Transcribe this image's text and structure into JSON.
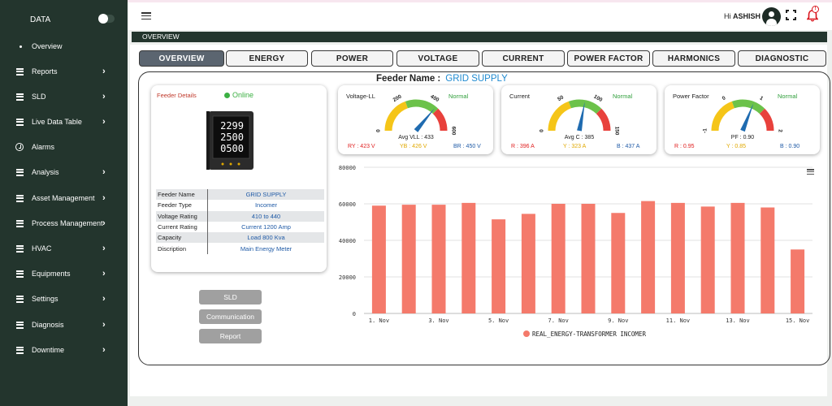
{
  "sidebar": {
    "brand": "DATA",
    "items": [
      {
        "label": "Overview",
        "icon": "dot-icon",
        "chevron": false
      },
      {
        "label": "Reports",
        "icon": "menu-icon",
        "chevron": true
      },
      {
        "label": "SLD",
        "icon": "menu-icon",
        "chevron": true
      },
      {
        "label": "Live Data Table",
        "icon": "menu-icon",
        "chevron": true
      },
      {
        "label": "Alarms",
        "icon": "clock-icon",
        "chevron": false
      },
      {
        "label": "Analysis",
        "icon": "menu-icon",
        "chevron": true
      },
      {
        "label": "Asset Management",
        "icon": "menu-icon",
        "chevron": true
      },
      {
        "label": "Process Management",
        "icon": "menu-icon",
        "chevron": true
      },
      {
        "label": "HVAC",
        "icon": "menu-icon",
        "chevron": true
      },
      {
        "label": "Equipments",
        "icon": "menu-icon",
        "chevron": true
      },
      {
        "label": "Settings",
        "icon": "menu-icon",
        "chevron": true
      },
      {
        "label": "Diagnosis",
        "icon": "menu-icon",
        "chevron": true
      },
      {
        "label": "Downtime",
        "icon": "menu-icon",
        "chevron": true
      }
    ],
    "chevron": "›"
  },
  "header": {
    "greeting": "Hi",
    "user": "ASHISH",
    "notification_badge": "!"
  },
  "overview_bar": "OVERVIEW",
  "tabs": [
    "OVERVIEW",
    "ENERGY",
    "POWER",
    "VOLTAGE",
    "CURRENT",
    "POWER FACTOR",
    "HARMONICS",
    "DIAGNOSTIC"
  ],
  "active_tab": "OVERVIEW",
  "feeder": {
    "label": "Feeder Name :",
    "name": "GRID SUPPLY"
  },
  "feeder_details": {
    "title": "Feeder Details",
    "status": "Online",
    "meter_lines": [
      "2299",
      "2500",
      "0500"
    ],
    "rows": [
      {
        "key": "Feeder Name",
        "value": "GRID SUPPLY"
      },
      {
        "key": "Feeder Type",
        "value": "Incomer"
      },
      {
        "key": "Voltage Rating",
        "value": "410 to 440"
      },
      {
        "key": "Current Rating",
        "value": "Current 1200 Amp"
      },
      {
        "key": "Capacity",
        "value": "Load 800 Kva"
      },
      {
        "key": "Discription",
        "value": "Main Energy Meter"
      }
    ]
  },
  "buttons": {
    "sld": "SLD",
    "communication": "Communication",
    "report": "Report"
  },
  "gauges": [
    {
      "title": "Voltage-LL",
      "status": "Normal",
      "min": "0",
      "mid1": "200",
      "mid2": "400",
      "max": "600",
      "value_fraction": 0.72,
      "avg": "Avg VLL : 433",
      "phases": [
        {
          "label": "RY : 423 V",
          "color": "#e02020"
        },
        {
          "label": "YB : 426 V",
          "color": "#e0a800"
        },
        {
          "label": "BR : 450 V",
          "color": "#1f5aa6"
        }
      ]
    },
    {
      "title": "Current",
      "status": "Normal",
      "min": "0",
      "mid1": "50",
      "mid2": "100",
      "max": "150",
      "value_fraction": 0.56,
      "avg": "Avg C : 385",
      "phases": [
        {
          "label": "R : 396 A",
          "color": "#e02020"
        },
        {
          "label": "Y : 323 A",
          "color": "#e0a800"
        },
        {
          "label": "B : 437 A",
          "color": "#1f5aa6"
        }
      ]
    },
    {
      "title": "Power Factor",
      "status": "Normal",
      "min": "-1",
      "mid1": "0",
      "mid2": "1",
      "max": "2",
      "value_fraction": 0.62,
      "avg": "PF : 0.90",
      "phases": [
        {
          "label": "R : 0.95",
          "color": "#e02020"
        },
        {
          "label": "Y : 0.85",
          "color": "#e0a800"
        },
        {
          "label": "B : 0.90",
          "color": "#1f5aa6"
        }
      ]
    }
  ],
  "gauge_colors": [
    "#f5c518",
    "#6cc24a",
    "#e8413c"
  ],
  "needle_color": "#1f6bb0",
  "chart_data": {
    "type": "bar",
    "categories": [
      "1. Nov",
      "2. Nov",
      "3. Nov",
      "4. Nov",
      "5. Nov",
      "6. Nov",
      "7. Nov",
      "8. Nov",
      "9. Nov",
      "10. Nov",
      "11. Nov",
      "12. Nov",
      "13. Nov",
      "14. Nov",
      "15. Nov"
    ],
    "x_tick_labels": [
      "1. Nov",
      "3. Nov",
      "5. Nov",
      "7. Nov",
      "9. Nov",
      "11. Nov",
      "13. Nov",
      "15. Nov"
    ],
    "series": [
      {
        "name": "REAL_ENERGY-TRANSFORMER INCOMER",
        "values": [
          59000,
          59500,
          59500,
          60500,
          51500,
          54500,
          60000,
          60000,
          55000,
          61500,
          60500,
          58500,
          60500,
          58000,
          35000
        ],
        "color": "#f47a6b"
      }
    ],
    "ylim": [
      0,
      80000
    ],
    "y_ticks": [
      "0",
      "20000",
      "40000",
      "60000",
      "80000"
    ],
    "grid": true,
    "legend": "bottom"
  }
}
